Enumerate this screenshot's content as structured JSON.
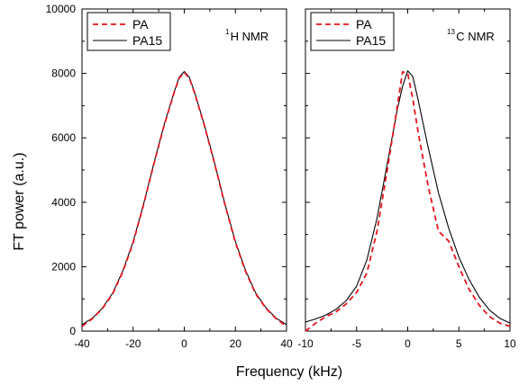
{
  "chart_data": {
    "type": "line",
    "ylabel": "FT power (a.u.)",
    "xlabel": "Frequency (kHz)",
    "ylim": [
      0,
      10000
    ],
    "yticks": [
      "0",
      "2000",
      "4000",
      "6000",
      "8000",
      "10000"
    ],
    "colors": {
      "PA": "#e8141c",
      "PA15": "#000000"
    },
    "panels": [
      {
        "label_sup": "1",
        "label_text": "H NMR",
        "xlim": [
          -40,
          40
        ],
        "xticks": [
          "-40",
          "-20",
          "0",
          "20",
          "40"
        ],
        "legend": {
          "position": "top-left",
          "entries": [
            "PA",
            "PA15"
          ]
        },
        "series": [
          {
            "name": "PA",
            "style": "dashed",
            "x": [
              -40,
              -36,
              -32,
              -28,
              -24,
              -20,
              -16,
              -12,
              -8,
              -4,
              -2,
              0,
              2,
              4,
              8,
              12,
              16,
              20,
              24,
              28,
              32,
              36,
              40
            ],
            "y": [
              150,
              380,
              700,
              1150,
              1850,
              2750,
              3900,
              5150,
              6350,
              7400,
              7850,
              8030,
              7850,
              7400,
              6350,
              5150,
              3900,
              2750,
              1850,
              1150,
              700,
              380,
              150
            ]
          },
          {
            "name": "PA15",
            "style": "solid",
            "x": [
              -40,
              -36,
              -32,
              -28,
              -24,
              -20,
              -16,
              -12,
              -8,
              -4,
              -2,
              0,
              2,
              4,
              8,
              12,
              16,
              20,
              24,
              28,
              32,
              36,
              40
            ],
            "y": [
              200,
              400,
              720,
              1180,
              1880,
              2780,
              3920,
              5170,
              6370,
              7420,
              7880,
              8060,
              7880,
              7420,
              6370,
              5170,
              3920,
              2780,
              1880,
              1180,
              720,
              400,
              200
            ]
          }
        ]
      },
      {
        "label_sup": "13",
        "label_text": "C NMR",
        "xlim": [
          -10,
          10
        ],
        "xticks": [
          "-10",
          "-5",
          "0",
          "5",
          "10"
        ],
        "legend": {
          "position": "top-left",
          "entries": [
            "PA",
            "PA15"
          ]
        },
        "series": [
          {
            "name": "PA",
            "style": "dashed",
            "x": [
              -10,
              -9,
              -8,
              -7,
              -6,
              -5,
              -4,
              -3,
              -2,
              -1,
              -0.5,
              0,
              0.5,
              1,
              2,
              3,
              4,
              5,
              6,
              7,
              8,
              9,
              10
            ],
            "y": [
              0,
              250,
              450,
              600,
              850,
              1200,
              1800,
              3100,
              5000,
              7000,
              8050,
              8000,
              7200,
              6200,
              4500,
              3100,
              2800,
              2000,
              1300,
              800,
              450,
              250,
              150
            ]
          },
          {
            "name": "PA15",
            "style": "solid",
            "x": [
              -10,
              -9,
              -8,
              -7,
              -6,
              -5,
              -4,
              -3,
              -2,
              -1,
              -0.5,
              0,
              0.5,
              1,
              2,
              3,
              4,
              5,
              6,
              7,
              8,
              9,
              10
            ],
            "y": [
              280,
              380,
              500,
              680,
              950,
              1400,
              2200,
              3500,
              5200,
              6900,
              7600,
              8080,
              7900,
              7200,
              5700,
              4300,
              3200,
              2300,
              1600,
              1050,
              650,
              400,
              250
            ]
          }
        ]
      }
    ]
  }
}
